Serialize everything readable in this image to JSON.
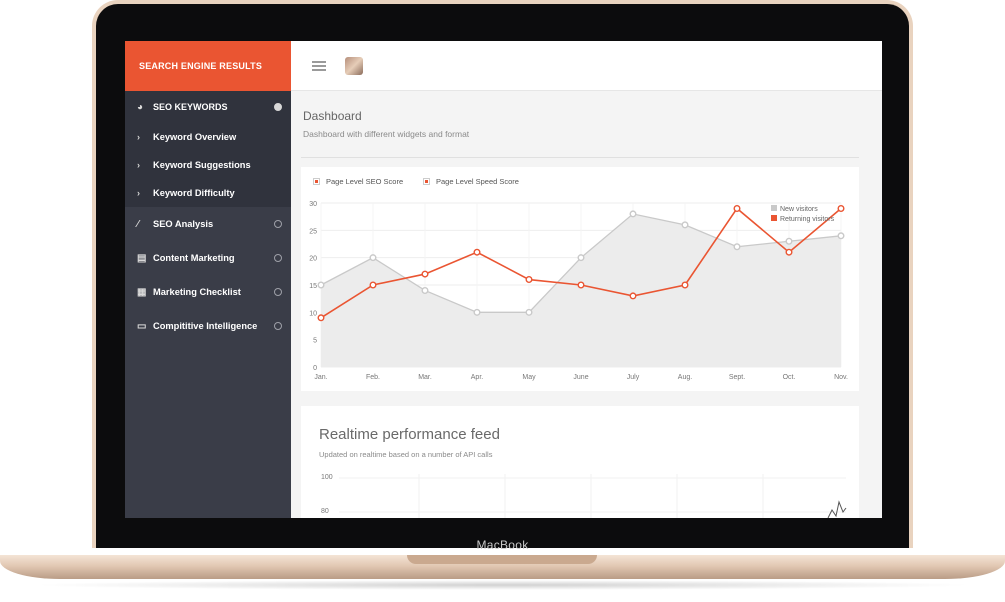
{
  "device": {
    "brand": "MacBook"
  },
  "sidebar": {
    "header": "SEARCH ENGINE RESULTS",
    "main_item": {
      "label": "SEO KEYWORDS",
      "icon": "dashboard-gauge-icon"
    },
    "sub_items": [
      {
        "label": "Keyword Overview"
      },
      {
        "label": "Keyword Suggestions"
      },
      {
        "label": "Keyword Difficulty"
      }
    ],
    "items": [
      {
        "label": "SEO Analysis",
        "icon": "magic-wand-icon"
      },
      {
        "label": "Content Marketing",
        "icon": "document-icon"
      },
      {
        "label": "Marketing Checklist",
        "icon": "grid-table-icon"
      },
      {
        "label": "Compititive Intelligence",
        "icon": "keyboard-icon"
      }
    ]
  },
  "header": {
    "menu_icon": "hamburger-menu-icon",
    "avatar": "user-avatar"
  },
  "page": {
    "title": "Dashboard",
    "subtitle": "Dashboard with different widgets and format"
  },
  "chart_card": {
    "legend_top": [
      "Page Level SEO Score",
      "Page Level Speed Score"
    ]
  },
  "chart_data": {
    "type": "line",
    "categories": [
      "Jan.",
      "Feb.",
      "Mar.",
      "Apr.",
      "May",
      "June",
      "July",
      "Aug.",
      "Sept.",
      "Oct.",
      "Nov."
    ],
    "ylim": [
      0,
      30
    ],
    "yticks": [
      0,
      5,
      10,
      15,
      20,
      25,
      30
    ],
    "legend_position": "top-right",
    "series": [
      {
        "name": "New visitors",
        "values": [
          15,
          20,
          14,
          10,
          10,
          20,
          28,
          26,
          22,
          23,
          24
        ],
        "color": "#c9c9c9",
        "fill": "#ececec"
      },
      {
        "name": "Returning visitors",
        "values": [
          9,
          15,
          17,
          21,
          16,
          15,
          13,
          15,
          29,
          21,
          29
        ],
        "color": "#ea5532"
      }
    ]
  },
  "realtime": {
    "title": "Realtime performance feed",
    "subtitle": "Updated on realtime based on a number of API calls",
    "y_labels": [
      "100",
      "80"
    ]
  },
  "colors": {
    "accent": "#ea5532",
    "sidebar": "#3a3d48",
    "sidebar_active": "#30333d"
  }
}
